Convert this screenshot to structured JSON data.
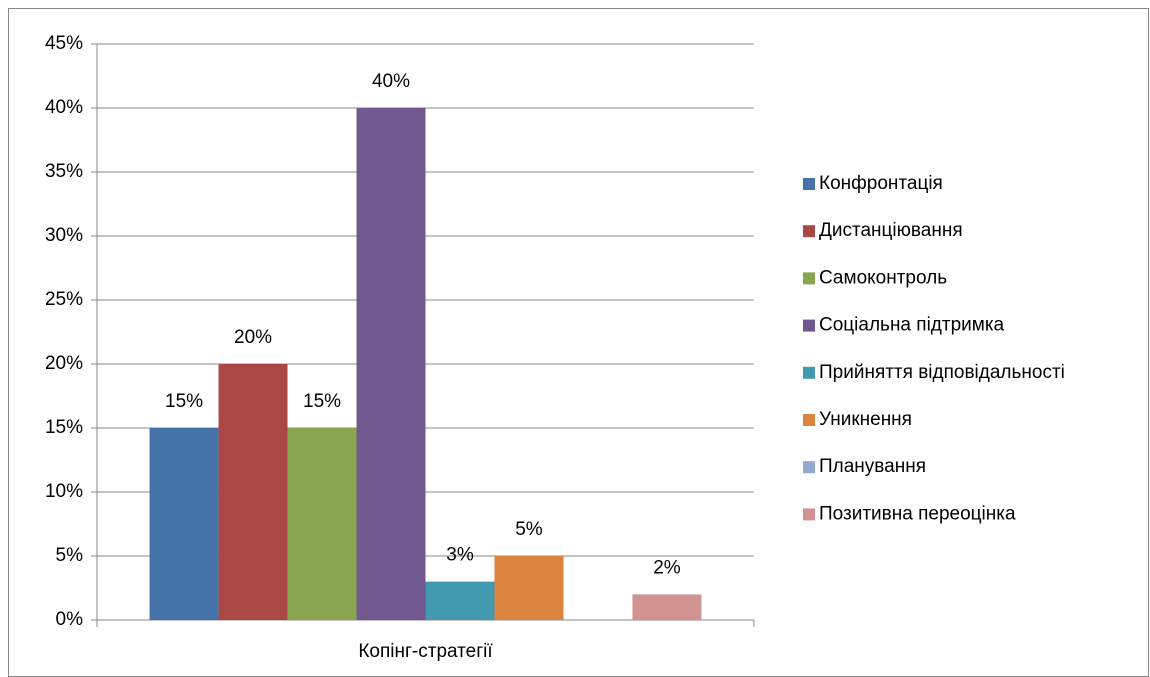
{
  "chart_data": {
    "type": "bar",
    "categories": [
      "Копінг-стратегії"
    ],
    "series": [
      {
        "name": "Конфронтація",
        "color": "#4572a7",
        "values": [
          15
        ],
        "value_labels": [
          "15%"
        ]
      },
      {
        "name": "Дистанціювання",
        "color": "#aa4643",
        "values": [
          20
        ],
        "value_labels": [
          "20%"
        ]
      },
      {
        "name": "Самоконтроль",
        "color": "#89a54e",
        "values": [
          15
        ],
        "value_labels": [
          "15%"
        ]
      },
      {
        "name": "Соціальна підтримка",
        "color": "#71588f",
        "values": [
          40
        ],
        "value_labels": [
          "40%"
        ]
      },
      {
        "name": "Прийняття відповідальності",
        "color": "#4198af",
        "values": [
          3
        ],
        "value_labels": [
          "3%"
        ]
      },
      {
        "name": "Уникнення",
        "color": "#db843d",
        "values": [
          5
        ],
        "value_labels": [
          "5%"
        ]
      },
      {
        "name": "Планування",
        "color": "#93a9cf",
        "values": [
          null
        ]
      },
      {
        "name": "Позитивна переоцінка",
        "color": "#d19392",
        "values": [
          2
        ],
        "value_labels": [
          "2%"
        ]
      }
    ],
    "ylim": [
      0,
      45
    ],
    "yticks": [
      {
        "value": 0,
        "label": "0%"
      },
      {
        "value": 5,
        "label": "5%"
      },
      {
        "value": 10,
        "label": "10%"
      },
      {
        "value": 15,
        "label": "15%"
      },
      {
        "value": 20,
        "label": "20%"
      },
      {
        "value": 25,
        "label": "25%"
      },
      {
        "value": 30,
        "label": "30%"
      },
      {
        "value": 35,
        "label": "35%"
      },
      {
        "value": 40,
        "label": "40%"
      },
      {
        "value": 45,
        "label": "45%"
      }
    ],
    "grid": true,
    "legend": "right"
  }
}
